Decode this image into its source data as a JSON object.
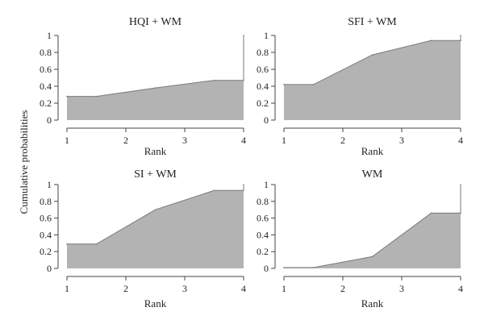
{
  "chart_data": {
    "type": "area",
    "shared_ylabel": "Cumulative probabilities",
    "colors": {
      "fill": "#b3b3b3",
      "stroke": "#7a7a7a",
      "axis": "#444444"
    },
    "grid": false,
    "panels": [
      {
        "title": "HQI + WM",
        "xlabel": "Rank",
        "xlim": [
          1,
          4
        ],
        "ylim": [
          0,
          1
        ],
        "xticks": [
          "1",
          "2",
          "3",
          "4"
        ],
        "yticks": [
          "0",
          "0.2",
          "0.4",
          "0.6",
          "0.8",
          "1"
        ],
        "x": [
          1,
          1.5,
          2.5,
          3.5,
          4,
          4
        ],
        "y": [
          0.28,
          0.28,
          0.38,
          0.47,
          0.47,
          1.0
        ]
      },
      {
        "title": "SFI + WM",
        "xlabel": "Rank",
        "xlim": [
          1,
          4
        ],
        "ylim": [
          0,
          1
        ],
        "xticks": [
          "1",
          "2",
          "3",
          "4"
        ],
        "yticks": [
          "0",
          "0.2",
          "0.4",
          "0.6",
          "0.8",
          "1"
        ],
        "x": [
          1,
          1.5,
          2.5,
          3.5,
          4,
          4
        ],
        "y": [
          0.42,
          0.42,
          0.77,
          0.94,
          0.94,
          1.0
        ]
      },
      {
        "title": "SI + WM",
        "xlabel": "Rank",
        "xlim": [
          1,
          4
        ],
        "ylim": [
          0,
          1
        ],
        "xticks": [
          "1",
          "2",
          "3",
          "4"
        ],
        "yticks": [
          "0",
          "0.2",
          "0.4",
          "0.6",
          "0.8",
          "1"
        ],
        "x": [
          1,
          1.5,
          2.5,
          3.5,
          4,
          4
        ],
        "y": [
          0.29,
          0.29,
          0.7,
          0.93,
          0.93,
          1.0
        ]
      },
      {
        "title": "WM",
        "xlabel": "Rank",
        "xlim": [
          1,
          4
        ],
        "ylim": [
          0,
          1
        ],
        "xticks": [
          "1",
          "2",
          "3",
          "4"
        ],
        "yticks": [
          "0",
          "0.2",
          "0.4",
          "0.6",
          "0.8",
          "1"
        ],
        "x": [
          1,
          1.5,
          2.5,
          3.5,
          4,
          4
        ],
        "y": [
          0.01,
          0.01,
          0.14,
          0.66,
          0.66,
          1.0
        ]
      }
    ]
  }
}
